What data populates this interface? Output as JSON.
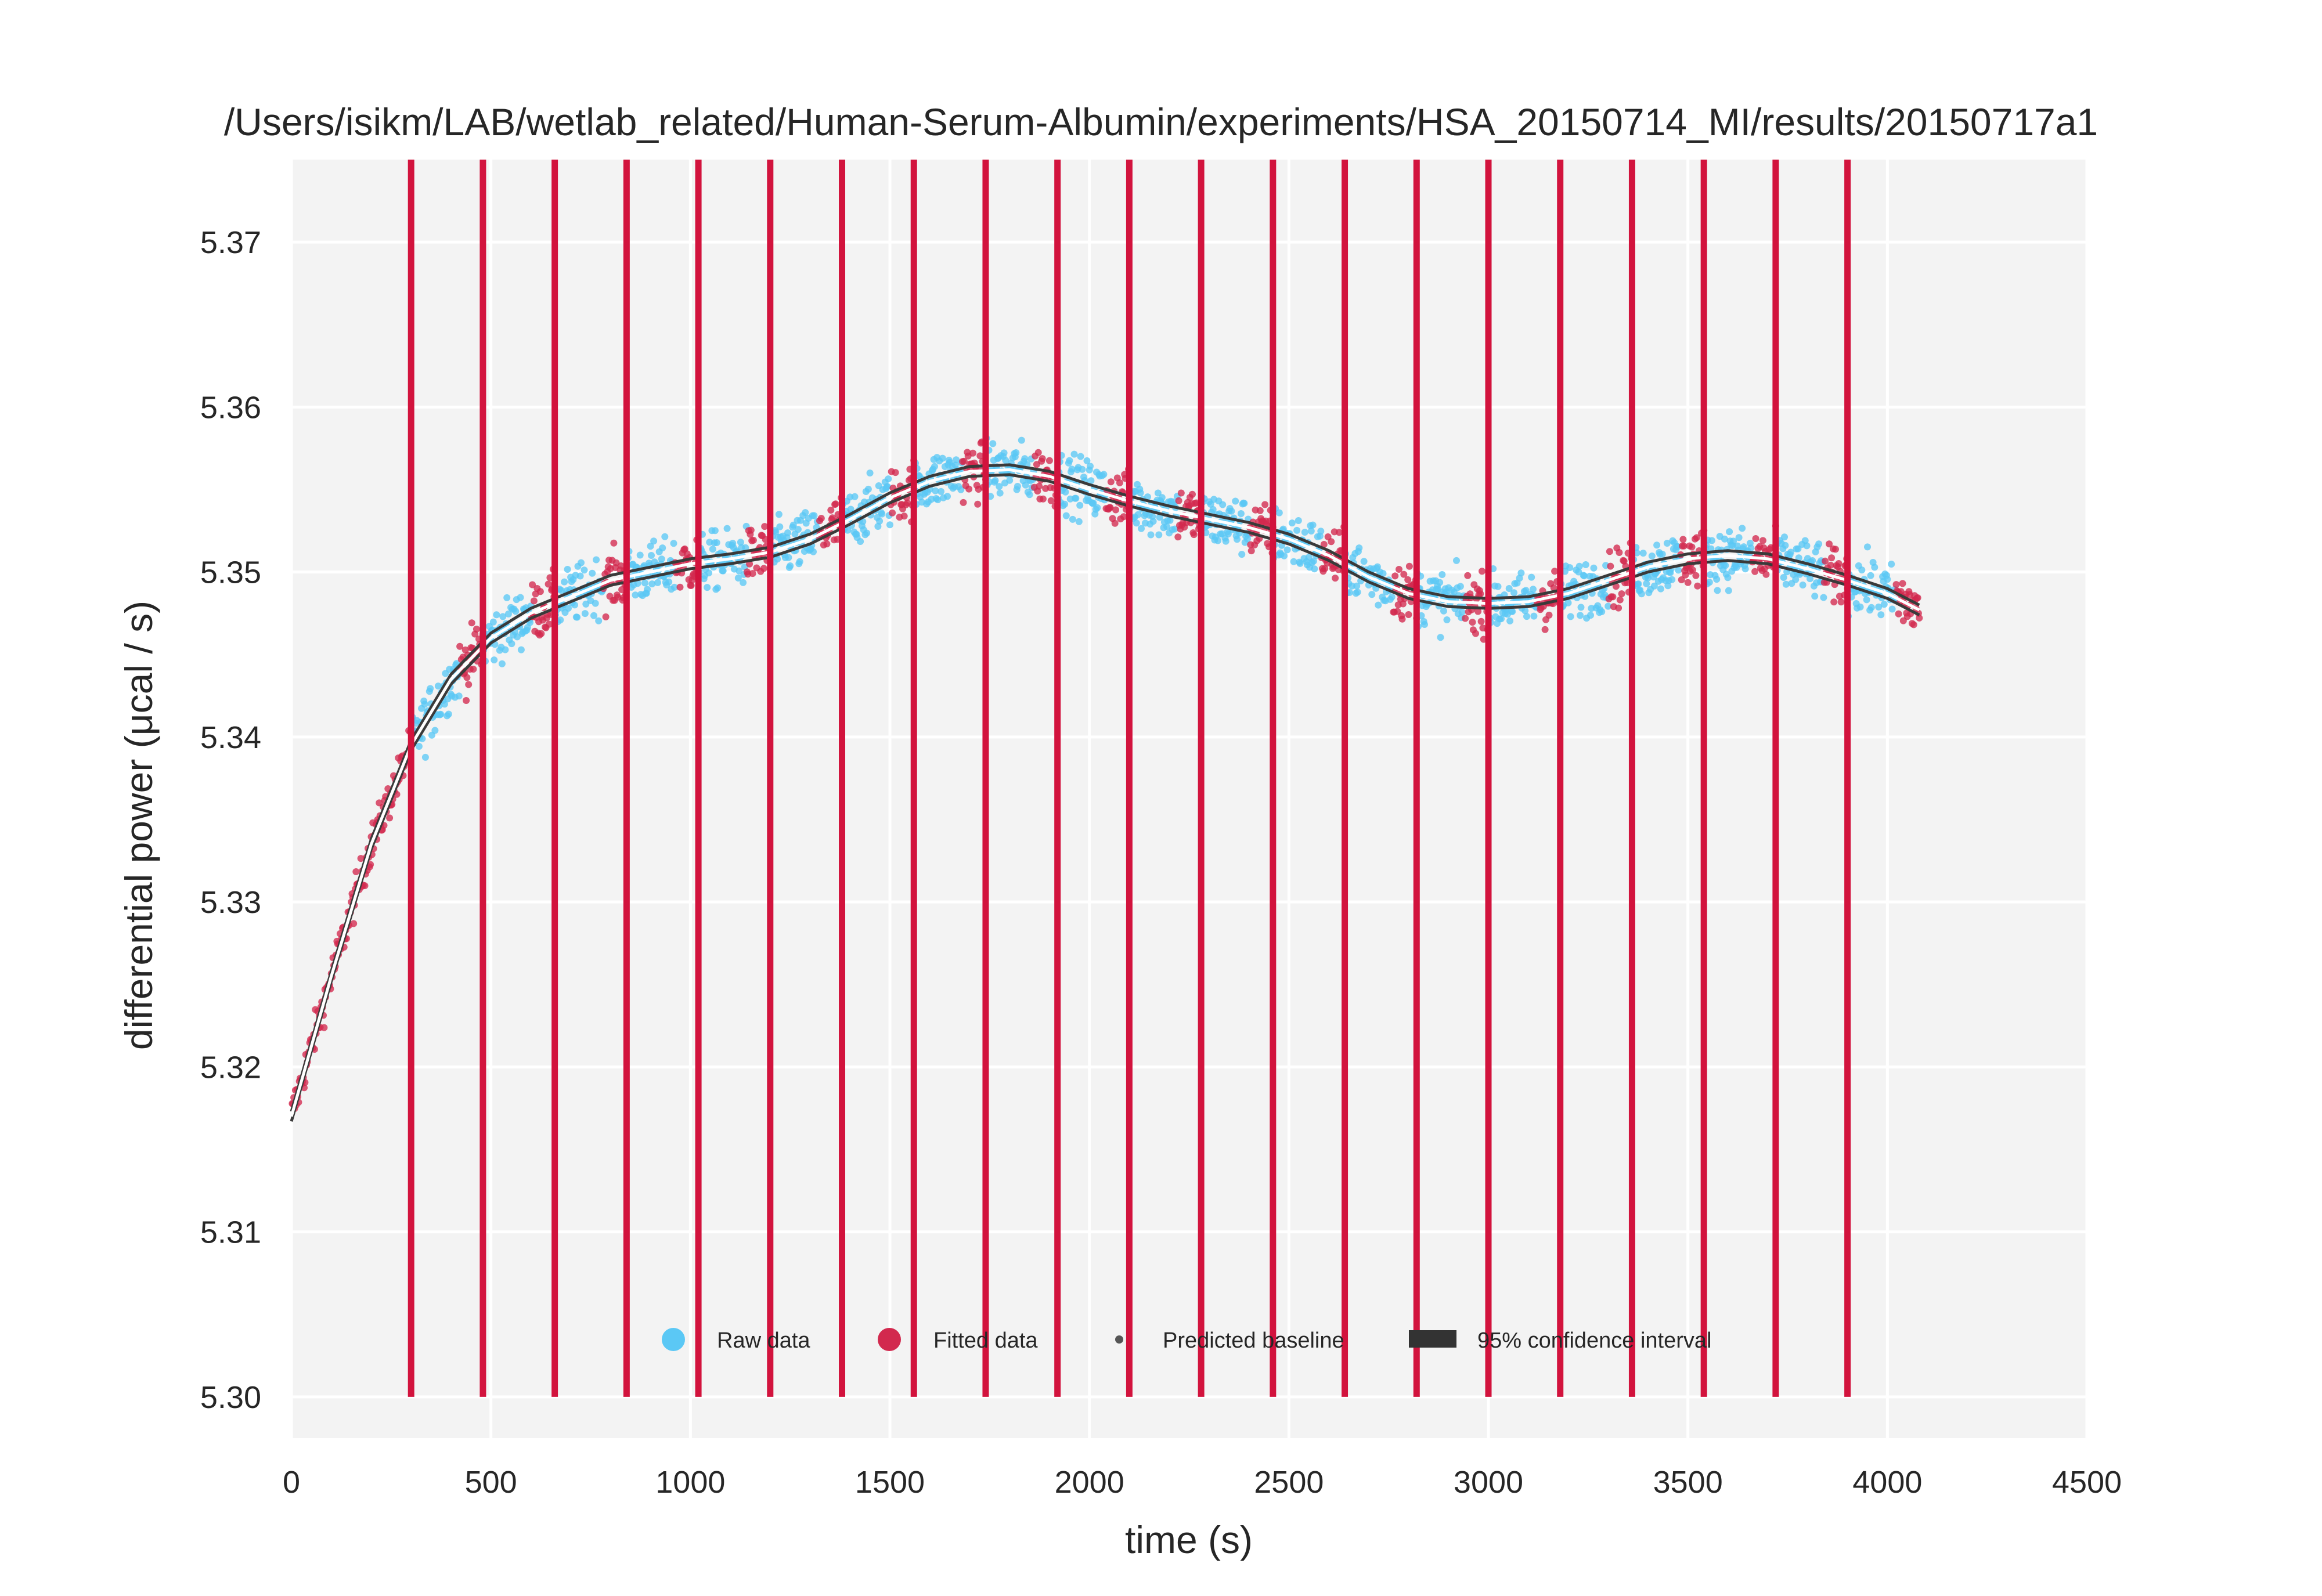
{
  "chart_data": {
    "type": "scatter",
    "title": "/Users/isikm/LAB/wetlab_related/Human-Serum-Albumin/experiments/HSA_20150714_MI/results/20150717a1",
    "xlabel": "time (s)",
    "ylabel": "differential power (μcal / s)",
    "xlim": [
      0,
      4500
    ],
    "ylim": [
      5.2975,
      5.375
    ],
    "xticks": [
      0,
      500,
      1000,
      1500,
      2000,
      2500,
      3000,
      3500,
      4000,
      4500
    ],
    "xtick_labels": [
      "0",
      "500",
      "1000",
      "1500",
      "2000",
      "2500",
      "3000",
      "3500",
      "4000",
      "4500"
    ],
    "yticks": [
      5.3,
      5.31,
      5.32,
      5.33,
      5.34,
      5.35,
      5.36,
      5.37
    ],
    "ytick_labels": [
      "5.30",
      "5.31",
      "5.32",
      "5.33",
      "5.34",
      "5.35",
      "5.36",
      "5.37"
    ],
    "grid": true,
    "legend_position": "bottom-center",
    "injections": [
      300,
      480,
      660,
      840,
      1020,
      1200,
      1380,
      1560,
      1740,
      1920,
      2100,
      2280,
      2460,
      2640,
      2820,
      3000,
      3180,
      3360,
      3540,
      3720,
      3900
    ],
    "injection_line_bottom": 5.3,
    "baseline": {
      "x": [
        0,
        100,
        200,
        300,
        400,
        500,
        600,
        700,
        800,
        900,
        1000,
        1100,
        1200,
        1300,
        1400,
        1500,
        1600,
        1700,
        1800,
        1900,
        2000,
        2100,
        2200,
        2300,
        2400,
        2500,
        2600,
        2700,
        2800,
        2900,
        3000,
        3100,
        3200,
        3300,
        3400,
        3500,
        3600,
        3700,
        3800,
        3900,
        4000,
        4080
      ],
      "y": [
        5.317,
        5.3255,
        5.3335,
        5.3395,
        5.3435,
        5.346,
        5.3475,
        5.3485,
        5.3495,
        5.35,
        5.3505,
        5.3508,
        5.3512,
        5.352,
        5.3532,
        5.3545,
        5.3555,
        5.3561,
        5.3562,
        5.3558,
        5.355,
        5.3543,
        5.3537,
        5.3532,
        5.3527,
        5.352,
        5.351,
        5.3497,
        5.3487,
        5.3482,
        5.3481,
        5.3482,
        5.3487,
        5.3495,
        5.3503,
        5.3508,
        5.351,
        5.3508,
        5.3502,
        5.3495,
        5.3487,
        5.3477
      ]
    },
    "series": [
      {
        "name": "Raw data",
        "color": "#5bc8f5",
        "marker": "circle",
        "points": "scattered around baseline between injections"
      },
      {
        "name": "Fitted data",
        "color": "#d2294e",
        "marker": "circle",
        "points": "scattered around baseline before injections"
      },
      {
        "name": "Predicted baseline",
        "color": "#555555",
        "marker": "point"
      },
      {
        "name": "95% confidence interval",
        "color": "#333333",
        "marker": "band"
      }
    ],
    "point_spread": 0.0022,
    "fitted_window_s": 60,
    "colors": {
      "background": "#f3f3f3",
      "grid": "#ffffff",
      "injection": "#d2133d",
      "raw": "#5bc8f5",
      "fitted": "#d2294e",
      "baseline": "#3a3a3a"
    }
  }
}
